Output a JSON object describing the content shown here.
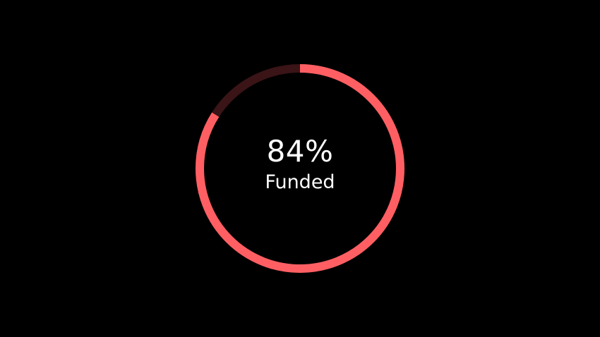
{
  "progress": {
    "value": 0.84,
    "percent_text": "84%",
    "label": "Funded"
  },
  "colors": {
    "background": "#000000",
    "progress": "#ff5f63",
    "track": "#3a1416",
    "text": "#ffffff"
  }
}
